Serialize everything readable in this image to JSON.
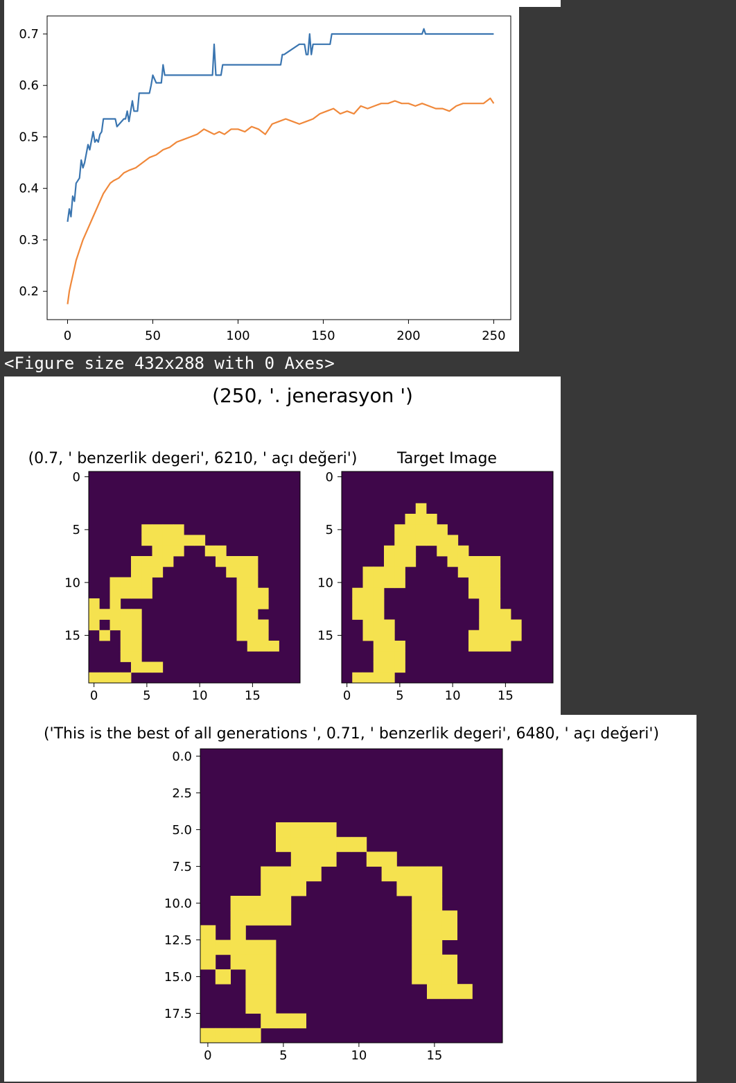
{
  "chart_data": [
    {
      "type": "line",
      "xlim": [
        -12,
        260
      ],
      "ylim": [
        0.145,
        0.735
      ],
      "x_ticks": [
        "0",
        "50",
        "100",
        "150",
        "200",
        "250"
      ],
      "x_tick_values": [
        0,
        50,
        100,
        150,
        200,
        250
      ],
      "y_ticks": [
        "0.2",
        "0.3",
        "0.4",
        "0.5",
        "0.6",
        "0.7"
      ],
      "y_tick_values": [
        0.2,
        0.3,
        0.4,
        0.5,
        0.6,
        0.7
      ],
      "grid": false,
      "series": [
        {
          "color": "#3a75b0",
          "x": [
            0,
            1,
            2,
            3,
            4,
            5,
            7,
            8,
            9,
            10,
            12,
            13,
            15,
            16,
            17,
            18,
            19,
            20,
            21,
            22,
            28,
            29,
            33,
            34,
            35,
            36,
            38,
            39,
            41,
            42,
            48,
            49,
            50,
            52,
            53,
            55,
            56,
            57,
            85,
            86,
            87,
            90,
            91,
            94,
            95,
            125,
            126,
            127,
            136,
            137,
            139,
            140,
            141,
            142,
            143,
            144,
            145,
            154,
            155,
            156,
            208,
            209,
            210,
            250
          ],
          "y": [
            0.335,
            0.36,
            0.345,
            0.385,
            0.375,
            0.41,
            0.42,
            0.455,
            0.44,
            0.45,
            0.485,
            0.475,
            0.51,
            0.49,
            0.495,
            0.49,
            0.505,
            0.51,
            0.535,
            0.535,
            0.535,
            0.52,
            0.535,
            0.535,
            0.55,
            0.53,
            0.57,
            0.55,
            0.55,
            0.585,
            0.585,
            0.6,
            0.62,
            0.605,
            0.605,
            0.605,
            0.64,
            0.62,
            0.62,
            0.68,
            0.62,
            0.62,
            0.64,
            0.64,
            0.64,
            0.64,
            0.66,
            0.66,
            0.68,
            0.68,
            0.68,
            0.66,
            0.66,
            0.7,
            0.66,
            0.68,
            0.68,
            0.68,
            0.7,
            0.7,
            0.7,
            0.71,
            0.7,
            0.7
          ]
        },
        {
          "color": "#f0883a",
          "x": [
            0,
            1,
            2,
            3,
            4,
            5,
            7,
            9,
            11,
            13,
            15,
            17,
            19,
            21,
            23,
            25,
            27,
            30,
            33,
            36,
            40,
            44,
            48,
            52,
            56,
            60,
            64,
            68,
            72,
            76,
            80,
            83,
            86,
            89,
            92,
            96,
            100,
            104,
            108,
            112,
            116,
            120,
            124,
            128,
            132,
            136,
            140,
            144,
            148,
            152,
            156,
            160,
            164,
            168,
            172,
            176,
            180,
            184,
            188,
            192,
            196,
            200,
            204,
            208,
            212,
            216,
            220,
            224,
            228,
            232,
            236,
            240,
            244,
            248,
            250
          ],
          "y": [
            0.175,
            0.2,
            0.215,
            0.23,
            0.245,
            0.26,
            0.28,
            0.3,
            0.315,
            0.33,
            0.345,
            0.36,
            0.375,
            0.39,
            0.4,
            0.41,
            0.415,
            0.42,
            0.43,
            0.435,
            0.44,
            0.45,
            0.46,
            0.465,
            0.475,
            0.48,
            0.49,
            0.495,
            0.5,
            0.505,
            0.515,
            0.51,
            0.505,
            0.51,
            0.505,
            0.515,
            0.515,
            0.51,
            0.52,
            0.515,
            0.505,
            0.525,
            0.53,
            0.535,
            0.53,
            0.525,
            0.53,
            0.535,
            0.545,
            0.55,
            0.555,
            0.545,
            0.55,
            0.545,
            0.56,
            0.555,
            0.56,
            0.565,
            0.565,
            0.57,
            0.565,
            0.565,
            0.56,
            0.565,
            0.56,
            0.555,
            0.555,
            0.55,
            0.56,
            0.565,
            0.565,
            0.565,
            0.565,
            0.575,
            0.565
          ]
        }
      ]
    },
    {
      "type": "heatmap",
      "title": "(250, '. jenerasyon ')",
      "subtitle": "(0.7, ' benzerlik degeri', 6210, ' açı değeri')",
      "colors": {
        "off": "#3f074a",
        "on": "#f5e24f"
      },
      "x_ticks": [
        "0",
        "5",
        "10",
        "15"
      ],
      "y_ticks": [
        "0",
        "5",
        "10",
        "15"
      ],
      "rows": [
        "00000000000000000000",
        "00000000000000000000",
        "00000000000000000000",
        "00000000000000000000",
        "00000000000000000000",
        "00000111100000000000",
        "00000111111000000000",
        "00000011100110000000",
        "00001111000011110000",
        "00001110000001110000",
        "00111100000000110000",
        "00111100000000111000",
        "10100000000000111000",
        "11111000000000110000",
        "10111000000000111000",
        "01011000000000111000",
        "00011000000000011100",
        "00011000000000000000",
        "00001110000000000000",
        "11110000000000000000"
      ]
    },
    {
      "type": "heatmap",
      "title": "Target Image",
      "colors": {
        "off": "#3f074a",
        "on": "#f5e24f"
      },
      "x_ticks": [
        "0",
        "5",
        "10",
        "15"
      ],
      "y_ticks": [
        "0",
        "5",
        "10",
        "15"
      ],
      "rows": [
        "00000000000000000000",
        "00000000000000000000",
        "00000000000000000000",
        "00000001000000000000",
        "00000011100000000000",
        "00000111110000000000",
        "00000111111000000000",
        "00001110011100000000",
        "00001110001111100000",
        "00111100000111100000",
        "00111100000011100000",
        "01110000000011100000",
        "01110000000001100000",
        "01110000000001110000",
        "00111000000001111000",
        "00111000000011111000",
        "00011100000011110000",
        "00011100000000000000",
        "00011100000000000000",
        "01111000000000000000"
      ]
    },
    {
      "type": "heatmap",
      "title": "('This is the best of all generations ', 0.71, ' benzerlik degeri', 6480, ' açı değeri')",
      "colors": {
        "off": "#3f074a",
        "on": "#f5e24f"
      },
      "x_ticks": [
        "0",
        "5",
        "10",
        "15"
      ],
      "y_ticks": [
        "0.0",
        "2.5",
        "5.0",
        "7.5",
        "10.0",
        "12.5",
        "15.0",
        "17.5"
      ],
      "rows": [
        "00000000000000000000",
        "00000000000000000000",
        "00000000000000000000",
        "00000000000000000000",
        "00000000000000000000",
        "00000111100000000000",
        "00000111111000000000",
        "00000011100110000000",
        "00001111000011110000",
        "00001110000001110000",
        "00111100000000110000",
        "00111100000000111000",
        "10100000000000111000",
        "11111000000000110000",
        "10111000000000111000",
        "01011000000000111000",
        "00011000000000011100",
        "00011000000000000000",
        "00001110000000000000",
        "11110000000000000000"
      ]
    }
  ],
  "output_text": "<Figure size 432x288 with 0 Axes>"
}
